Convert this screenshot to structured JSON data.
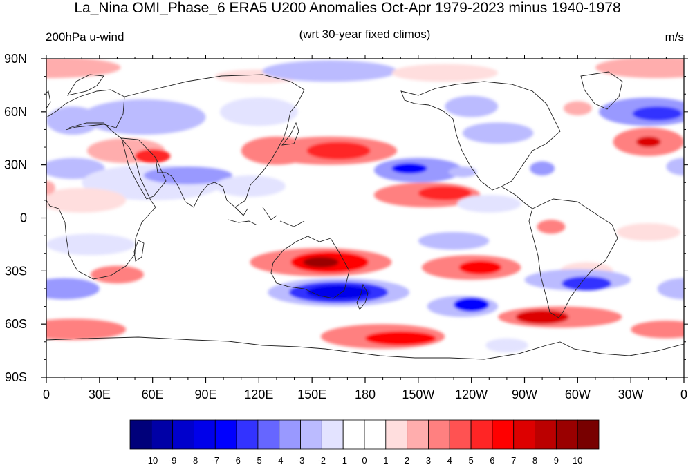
{
  "title": "La_Nina OMI_Phase_6 ERA5 U200 Anomalies Oct-Apr 1979-2023 minus 1940-1978",
  "subtitle_left": "200hPa u-wind",
  "subtitle_center": "(wrt 30-year fixed climos)",
  "subtitle_right": "m/s",
  "map": {
    "projection": "cylindrical equidistant",
    "lon_range": [
      0,
      360
    ],
    "lat_range": [
      -90,
      90
    ],
    "lon_ticks": [
      {
        "value": 0,
        "label": "0"
      },
      {
        "value": 30,
        "label": "30E"
      },
      {
        "value": 60,
        "label": "60E"
      },
      {
        "value": 90,
        "label": "90E"
      },
      {
        "value": 120,
        "label": "120E"
      },
      {
        "value": 150,
        "label": "150E"
      },
      {
        "value": 180,
        "label": "180"
      },
      {
        "value": 210,
        "label": "150W"
      },
      {
        "value": 240,
        "label": "120W"
      },
      {
        "value": 270,
        "label": "90W"
      },
      {
        "value": 300,
        "label": "60W"
      },
      {
        "value": 330,
        "label": "30W"
      },
      {
        "value": 360,
        "label": "0"
      }
    ],
    "lat_ticks": [
      {
        "value": 90,
        "label": "90N"
      },
      {
        "value": 60,
        "label": "60N"
      },
      {
        "value": 30,
        "label": "30N"
      },
      {
        "value": 0,
        "label": "0"
      },
      {
        "value": -30,
        "label": "30S"
      },
      {
        "value": -60,
        "label": "60S"
      },
      {
        "value": -90,
        "label": "90S"
      }
    ],
    "anomaly_features": [
      {
        "lon": 0,
        "lat": 85,
        "rx": 42,
        "ry": 6,
        "value": 2
      },
      {
        "lon": 345,
        "lat": 85,
        "rx": 35,
        "ry": 6,
        "value": 2
      },
      {
        "lon": 120,
        "lat": 80,
        "rx": 25,
        "ry": 4,
        "value": 1
      },
      {
        "lon": 160,
        "lat": 83,
        "rx": 38,
        "ry": 6,
        "value": -3
      },
      {
        "lon": 225,
        "lat": 82,
        "rx": 30,
        "ry": 5,
        "value": 1
      },
      {
        "lon": 15,
        "lat": 55,
        "rx": 15,
        "ry": 8,
        "value": -3
      },
      {
        "lon": 55,
        "lat": 57,
        "rx": 35,
        "ry": 10,
        "value": -3
      },
      {
        "lon": 120,
        "lat": 60,
        "rx": 22,
        "ry": 8,
        "value": -2
      },
      {
        "lon": 240,
        "lat": 63,
        "rx": 15,
        "ry": 6,
        "value": -3
      },
      {
        "lon": 255,
        "lat": 48,
        "rx": 20,
        "ry": 6,
        "value": -3
      },
      {
        "lon": 300,
        "lat": 62,
        "rx": 8,
        "ry": 4,
        "value": 2
      },
      {
        "lon": 340,
        "lat": 60,
        "rx": 28,
        "ry": 8,
        "value": -4
      },
      {
        "lon": 345,
        "lat": 59,
        "rx": 14,
        "ry": 4,
        "value": -6
      },
      {
        "lon": 45,
        "lat": 38,
        "rx": 22,
        "ry": 7,
        "value": 2
      },
      {
        "lon": 60,
        "lat": 35,
        "rx": 10,
        "ry": 4,
        "value": 5
      },
      {
        "lon": 130,
        "lat": 38,
        "rx": 20,
        "ry": 8,
        "value": 3
      },
      {
        "lon": 160,
        "lat": 38,
        "rx": 38,
        "ry": 8,
        "value": 3
      },
      {
        "lon": 165,
        "lat": 38,
        "rx": 18,
        "ry": 5,
        "value": 5
      },
      {
        "lon": 340,
        "lat": 43,
        "rx": 20,
        "ry": 8,
        "value": 3
      },
      {
        "lon": 340,
        "lat": 43,
        "rx": 7,
        "ry": 3,
        "value": 7
      },
      {
        "lon": 15,
        "lat": 28,
        "rx": 18,
        "ry": 6,
        "value": -3
      },
      {
        "lon": 60,
        "lat": 20,
        "rx": 40,
        "ry": 10,
        "value": -2
      },
      {
        "lon": 80,
        "lat": 24,
        "rx": 25,
        "ry": 5,
        "value": -4
      },
      {
        "lon": 115,
        "lat": 18,
        "rx": 20,
        "ry": 6,
        "value": -2
      },
      {
        "lon": 210,
        "lat": 27,
        "rx": 25,
        "ry": 7,
        "value": -4
      },
      {
        "lon": 205,
        "lat": 28,
        "rx": 10,
        "ry": 3,
        "value": -7
      },
      {
        "lon": 235,
        "lat": 26,
        "rx": 8,
        "ry": 3,
        "value": -3
      },
      {
        "lon": 280,
        "lat": 28,
        "rx": 7,
        "ry": 4,
        "value": -4
      },
      {
        "lon": 360,
        "lat": 29,
        "rx": 10,
        "ry": 5,
        "value": -3
      },
      {
        "lon": 215,
        "lat": 13,
        "rx": 30,
        "ry": 7,
        "value": 3
      },
      {
        "lon": 225,
        "lat": 14,
        "rx": 15,
        "ry": 4,
        "value": 5
      },
      {
        "lon": 20,
        "lat": 10,
        "rx": 25,
        "ry": 7,
        "value": 1
      },
      {
        "lon": 0,
        "lat": 17,
        "rx": 5,
        "ry": 4,
        "value": 2
      },
      {
        "lon": 250,
        "lat": 8,
        "rx": 18,
        "ry": 5,
        "value": -2
      },
      {
        "lon": 285,
        "lat": -5,
        "rx": 8,
        "ry": 4,
        "value": 3
      },
      {
        "lon": 230,
        "lat": -13,
        "rx": 20,
        "ry": 5,
        "value": -3
      },
      {
        "lon": 340,
        "lat": -8,
        "rx": 18,
        "ry": 5,
        "value": 1
      },
      {
        "lon": 25,
        "lat": -15,
        "rx": 25,
        "ry": 6,
        "value": -2
      },
      {
        "lon": 75,
        "lat": -12,
        "rx": 25,
        "ry": 4,
        "value": -1
      },
      {
        "lon": 155,
        "lat": -25,
        "rx": 40,
        "ry": 8,
        "value": 3
      },
      {
        "lon": 160,
        "lat": -25,
        "rx": 22,
        "ry": 6,
        "value": 6
      },
      {
        "lon": 155,
        "lat": -25,
        "rx": 10,
        "ry": 3,
        "value": 9
      },
      {
        "lon": 40,
        "lat": -32,
        "rx": 15,
        "ry": 5,
        "value": 3
      },
      {
        "lon": 240,
        "lat": -28,
        "rx": 28,
        "ry": 7,
        "value": 3
      },
      {
        "lon": 245,
        "lat": -28,
        "rx": 12,
        "ry": 4,
        "value": 6
      },
      {
        "lon": 305,
        "lat": -30,
        "rx": 15,
        "ry": 5,
        "value": 1
      },
      {
        "lon": 300,
        "lat": -35,
        "rx": 30,
        "ry": 6,
        "value": -3
      },
      {
        "lon": 305,
        "lat": -37,
        "rx": 14,
        "ry": 4,
        "value": -6
      },
      {
        "lon": 165,
        "lat": -42,
        "rx": 40,
        "ry": 8,
        "value": -3
      },
      {
        "lon": 165,
        "lat": -42,
        "rx": 28,
        "ry": 6,
        "value": -6
      },
      {
        "lon": 165,
        "lat": -42,
        "rx": 18,
        "ry": 4,
        "value": -8
      },
      {
        "lon": 235,
        "lat": -50,
        "rx": 20,
        "ry": 6,
        "value": -3
      },
      {
        "lon": 240,
        "lat": -49,
        "rx": 10,
        "ry": 4,
        "value": -7
      },
      {
        "lon": 10,
        "lat": -40,
        "rx": 20,
        "ry": 6,
        "value": -4
      },
      {
        "lon": 360,
        "lat": -40,
        "rx": 15,
        "ry": 6,
        "value": -3
      },
      {
        "lon": 290,
        "lat": -56,
        "rx": 35,
        "ry": 6,
        "value": 3
      },
      {
        "lon": 280,
        "lat": -56,
        "rx": 15,
        "ry": 4,
        "value": 7
      },
      {
        "lon": 190,
        "lat": -67,
        "rx": 35,
        "ry": 7,
        "value": 3
      },
      {
        "lon": 200,
        "lat": -68,
        "rx": 20,
        "ry": 4,
        "value": 6
      },
      {
        "lon": 15,
        "lat": -63,
        "rx": 30,
        "ry": 6,
        "value": 3
      },
      {
        "lon": 350,
        "lat": -63,
        "rx": 20,
        "ry": 5,
        "value": 3
      },
      {
        "lon": 100,
        "lat": -72,
        "rx": 30,
        "ry": 5,
        "value": -1
      },
      {
        "lon": 260,
        "lat": -72,
        "rx": 12,
        "ry": 4,
        "value": -2
      }
    ]
  },
  "colorbar": {
    "levels": [
      -10,
      -9,
      -8,
      -7,
      -6,
      -5,
      -4,
      -3,
      -2,
      -1,
      0,
      1,
      2,
      3,
      4,
      5,
      6,
      7,
      8,
      9,
      10
    ],
    "colors": [
      "#00007a",
      "#0000a6",
      "#0000cc",
      "#0000ea",
      "#0000ff",
      "#3333ff",
      "#6666ff",
      "#9999ff",
      "#bbbbff",
      "#e3e3ff",
      "#ffffff",
      "#ffffff",
      "#ffdede",
      "#ffadad",
      "#ff8080",
      "#ff5252",
      "#ff2525",
      "#ff0000",
      "#dd0000",
      "#bb0000",
      "#9a0000",
      "#780000"
    ]
  }
}
